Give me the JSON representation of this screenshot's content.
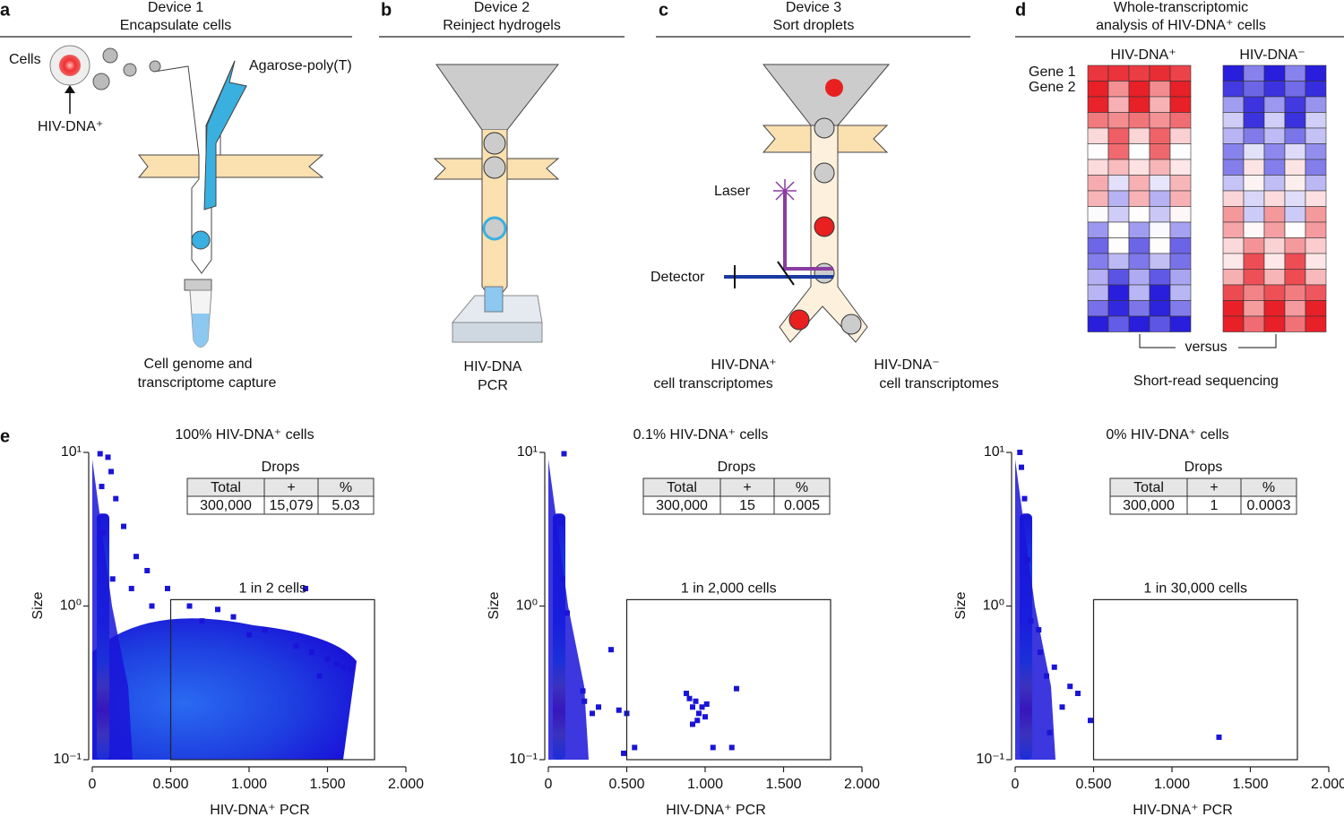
{
  "figure": {
    "a": {
      "letter": "a",
      "title": [
        "Device 1",
        "Encapsulate cells"
      ],
      "cells": "Cells",
      "hiv": "HIV-DNA⁺",
      "agarose": "Agarose-poly(T)",
      "caption": [
        "Cell genome and",
        "transcriptome capture"
      ]
    },
    "b": {
      "letter": "b",
      "title": [
        "Device 2",
        "Reinject hydrogels"
      ],
      "caption": [
        "HIV-DNA",
        "PCR"
      ]
    },
    "c": {
      "letter": "c",
      "title": [
        "Device 3",
        "Sort droplets"
      ],
      "laser": "Laser",
      "detector": "Detector",
      "pos": [
        "HIV-DNA⁺",
        "cell transcriptomes"
      ],
      "neg": [
        "HIV-DNA⁻",
        "cell transcriptomes"
      ]
    },
    "d": {
      "letter": "d",
      "title": [
        "Whole-transcriptomic",
        "analysis of HIV-DNA⁺ cells"
      ],
      "pos": "HIV-DNA⁺",
      "neg": "HIV-DNA⁻",
      "genes": [
        "Gene 1",
        "Gene 2"
      ],
      "versus": "versus",
      "caption": "Short-read sequencing"
    },
    "e": {
      "letter": "e"
    }
  },
  "chart_data": [
    {
      "type": "scatter",
      "title": "100% HIV-DNA⁺ cells",
      "x_label": "HIV-DNA⁺ PCR",
      "y_label": "Size",
      "log_y": true,
      "color": "#1a14d8",
      "xlim": [
        0,
        2000
      ],
      "ylim": [
        0.1,
        10
      ],
      "xticks": [
        0,
        {
          "value": 500,
          "label": "0.500"
        },
        {
          "value": 1000,
          "label": "1.000"
        },
        {
          "value": 1500,
          "label": "1.500"
        },
        {
          "value": 2000,
          "label": "2.000"
        }
      ],
      "yticks": [
        {
          "value": 0.1,
          "label": "10⁻¹"
        },
        {
          "value": 1,
          "label": "10⁰"
        },
        {
          "value": 10,
          "label": "10¹"
        }
      ],
      "x": [
        50,
        100,
        120,
        60,
        200,
        280,
        350,
        480,
        620,
        150,
        250,
        380,
        700,
        900,
        1100,
        1300,
        1400,
        1500,
        1560,
        1600,
        1650,
        1450,
        1360,
        1000,
        800,
        130,
        70
      ],
      "y": [
        9.8,
        9.3,
        7.5,
        6,
        3.3,
        2.1,
        1.7,
        1.3,
        1.0,
        5,
        1.3,
        1.0,
        0.8,
        0.85,
        0.7,
        0.55,
        0.5,
        0.45,
        0.42,
        0.4,
        0.39,
        0.35,
        1.3,
        0.65,
        0.95,
        1.5,
        3
      ],
      "gate": {
        "label": "1 in 2 cells",
        "x": [
          500,
          1800
        ],
        "y": [
          0.1,
          1.1
        ]
      },
      "table": {
        "title": "Drops",
        "header": [
          "Total",
          "+",
          "%"
        ],
        "row": [
          "300,000",
          "15,079",
          "5.03"
        ]
      }
    },
    {
      "type": "scatter",
      "title": "0.1% HIV-DNA⁺ cells",
      "x_label": "HIV-DNA⁺ PCR",
      "y_label": "Size",
      "log_y": true,
      "color": "#1a14d8",
      "xlim": [
        0,
        2000
      ],
      "ylim": [
        0.1,
        10
      ],
      "xticks": [
        0,
        {
          "value": 500,
          "label": "0.500"
        },
        {
          "value": 1000,
          "label": "1.000"
        },
        {
          "value": 1500,
          "label": "1.500"
        },
        {
          "value": 2000,
          "label": "2.000"
        }
      ],
      "yticks": [
        {
          "value": 0.1,
          "label": "10⁻¹"
        },
        {
          "value": 1,
          "label": "10⁰"
        },
        {
          "value": 10,
          "label": "10¹"
        }
      ],
      "x": [
        400,
        220,
        230,
        280,
        320,
        450,
        500,
        550,
        480,
        880,
        900,
        920,
        940,
        960,
        980,
        1000,
        950,
        920,
        1010,
        1200,
        1170,
        1050,
        100,
        80,
        90,
        120
      ],
      "y": [
        0.52,
        0.28,
        0.24,
        0.2,
        0.22,
        0.21,
        0.2,
        0.12,
        0.11,
        0.27,
        0.25,
        0.22,
        0.24,
        0.2,
        0.22,
        0.19,
        0.18,
        0.17,
        0.23,
        0.29,
        0.12,
        0.12,
        9.8,
        3.5,
        1.5,
        0.9
      ],
      "gate": {
        "label": "1 in 2,000 cells",
        "x": [
          500,
          1800
        ],
        "y": [
          0.1,
          1.1
        ]
      },
      "table": {
        "title": "Drops",
        "header": [
          "Total",
          "+",
          "%"
        ],
        "row": [
          "300,000",
          "15",
          "0.005"
        ]
      }
    },
    {
      "type": "scatter",
      "title": "0% HIV-DNA⁺ cells",
      "x_label": "HIV-DNA⁺ PCR",
      "y_label": "Size",
      "log_y": true,
      "color": "#1a14d8",
      "xlim": [
        0,
        2000
      ],
      "ylim": [
        0.1,
        10
      ],
      "xticks": [
        0,
        {
          "value": 500,
          "label": "0.500"
        },
        {
          "value": 1000,
          "label": "1.000"
        },
        {
          "value": 1500,
          "label": "1.500"
        },
        {
          "value": 2000,
          "label": "2.000"
        }
      ],
      "yticks": [
        {
          "value": 0.1,
          "label": "10⁻¹"
        },
        {
          "value": 1,
          "label": "10⁰"
        },
        {
          "value": 10,
          "label": "10¹"
        }
      ],
      "x": [
        1300,
        480,
        300,
        350,
        200,
        250,
        160,
        100,
        60,
        40,
        80,
        150,
        220,
        400,
        30
      ],
      "y": [
        0.14,
        0.18,
        0.22,
        0.3,
        0.35,
        0.4,
        0.5,
        0.8,
        5,
        8,
        2,
        0.7,
        0.15,
        0.27,
        10
      ],
      "gate": {
        "label": "1 in 30,000 cells",
        "x": [
          500,
          1800
        ],
        "y": [
          0.1,
          1.1
        ]
      },
      "table": {
        "title": "Drops",
        "header": [
          "Total",
          "+",
          "%"
        ],
        "row": [
          "300,000",
          "1",
          "0.0003"
        ]
      }
    }
  ]
}
